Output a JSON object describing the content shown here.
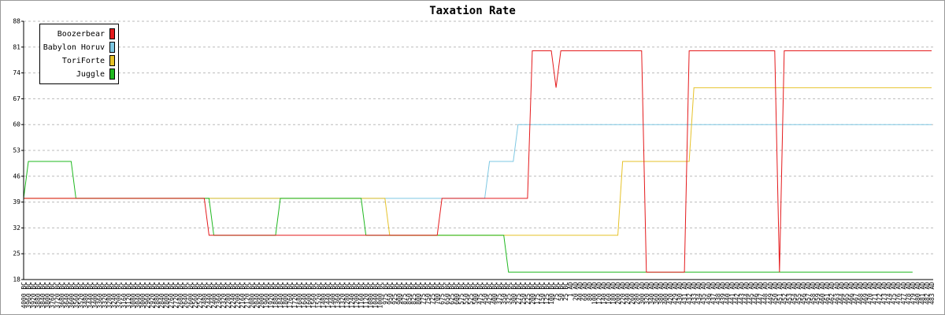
{
  "chart_data": {
    "type": "line",
    "title": "Taxation Rate",
    "categories": [
      "4000 BC",
      "3960 BC",
      "3920 BC",
      "3880 BC",
      "3840 BC",
      "3800 BC",
      "3760 BC",
      "3720 BC",
      "3680 BC",
      "3640 BC",
      "3600 BC",
      "3560 BC",
      "3520 BC",
      "3480 BC",
      "3440 BC",
      "3400 BC",
      "3360 BC",
      "3320 BC",
      "3280 BC",
      "3240 BC",
      "3200 BC",
      "3160 BC",
      "3120 BC",
      "3080 BC",
      "3040 BC",
      "3000 BC",
      "2960 BC",
      "2920 BC",
      "2880 BC",
      "2840 BC",
      "2800 BC",
      "2760 BC",
      "2720 BC",
      "2680 BC",
      "2640 BC",
      "2600 BC",
      "2560 BC",
      "2520 BC",
      "2480 BC",
      "2440 BC",
      "2400 BC",
      "2360 BC",
      "2320 BC",
      "2280 BC",
      "2240 BC",
      "2200 BC",
      "2160 BC",
      "2120 BC",
      "2080 BC",
      "2040 BC",
      "2000 BC",
      "1960 BC",
      "1920 BC",
      "1880 BC",
      "1840 BC",
      "1800 BC",
      "1760 BC",
      "1720 BC",
      "1680 BC",
      "1640 BC",
      "1600 BC",
      "1560 BC",
      "1520 BC",
      "1480 BC",
      "1440 BC",
      "1400 BC",
      "1360 BC",
      "1320 BC",
      "1280 BC",
      "1240 BC",
      "1200 BC",
      "1160 BC",
      "1120 BC",
      "1080 BC",
      "1040 BC",
      "1000 BC",
      "975 BC",
      "950 BC",
      "925 BC",
      "900 BC",
      "875 BC",
      "850 BC",
      "825 BC",
      "800 BC",
      "775 BC",
      "750 BC",
      "725 BC",
      "700 BC",
      "675 BC",
      "650 BC",
      "625 BC",
      "600 BC",
      "575 BC",
      "550 BC",
      "525 BC",
      "500 BC",
      "475 BC",
      "450 BC",
      "425 BC",
      "400 BC",
      "375 BC",
      "350 BC",
      "325 BC",
      "300 BC",
      "275 BC",
      "250 BC",
      "225 BC",
      "200 BC",
      "175 BC",
      "150 BC",
      "125 BC",
      "100 BC",
      "75 BC",
      "50 BC",
      "25 BC",
      "1 AD",
      "20 AD",
      "40 AD",
      "60 AD",
      "80 AD",
      "100 AD",
      "120 AD",
      "140 AD",
      "160 AD",
      "180 AD",
      "200 AD",
      "220 AD",
      "240 AD",
      "260 AD",
      "280 AD",
      "300 AD",
      "320 AD",
      "340 AD",
      "360 AD",
      "380 AD",
      "400 AD",
      "420 AD",
      "429 AD",
      "430 AD",
      "431 AD",
      "432 AD",
      "433 AD",
      "434 AD",
      "435 AD",
      "436 AD",
      "437 AD",
      "438 AD",
      "439 AD",
      "440 AD",
      "441 AD",
      "442 AD",
      "443 AD",
      "444 AD",
      "445 AD",
      "446 AD",
      "447 AD",
      "448 AD",
      "449 AD",
      "450 AD",
      "451 AD",
      "452 AD",
      "453 AD",
      "454 AD",
      "455 AD",
      "456 AD",
      "457 AD",
      "458 AD",
      "459 AD",
      "460 AD",
      "461 AD",
      "462 AD",
      "463 AD",
      "464 AD",
      "465 AD",
      "466 AD",
      "467 AD",
      "468 AD",
      "469 AD",
      "470 AD",
      "471 AD",
      "472 AD",
      "473 AD",
      "474 AD",
      "475 AD",
      "476 AD",
      "477 AD",
      "478 AD",
      "479 AD",
      "480 AD",
      "481 AD",
      "482 AD",
      "483 AD"
    ],
    "series": [
      {
        "name": "Boozerbear",
        "color": "#e41a1c",
        "values": [
          40,
          40,
          40,
          40,
          40,
          40,
          40,
          40,
          40,
          40,
          40,
          40,
          40,
          40,
          40,
          40,
          40,
          40,
          40,
          40,
          40,
          40,
          40,
          40,
          40,
          40,
          40,
          40,
          40,
          40,
          40,
          40,
          40,
          40,
          40,
          40,
          40,
          40,
          40,
          30,
          30,
          30,
          30,
          30,
          30,
          30,
          30,
          30,
          30,
          30,
          30,
          30,
          30,
          30,
          30,
          30,
          30,
          30,
          30,
          30,
          30,
          30,
          30,
          30,
          30,
          30,
          30,
          30,
          30,
          30,
          30,
          30,
          30,
          30,
          30,
          30,
          30,
          30,
          30,
          30,
          30,
          30,
          30,
          30,
          30,
          30,
          30,
          30,
          40,
          40,
          40,
          40,
          40,
          40,
          40,
          40,
          40,
          40,
          40,
          40,
          40,
          40,
          40,
          40,
          40,
          40,
          40,
          80,
          80,
          80,
          80,
          80,
          70,
          80,
          80,
          80,
          80,
          80,
          80,
          80,
          80,
          80,
          80,
          80,
          80,
          80,
          80,
          80,
          80,
          80,
          80,
          20,
          20,
          20,
          20,
          20,
          20,
          20,
          20,
          20,
          80,
          80,
          80,
          80,
          80,
          80,
          80,
          80,
          80,
          80,
          80,
          80,
          80,
          80,
          80,
          80,
          80,
          80,
          80,
          20,
          80,
          80,
          80,
          80,
          80,
          80,
          80,
          80,
          80,
          80,
          80,
          80,
          80,
          80,
          80,
          80,
          80,
          80,
          80,
          80,
          80,
          80,
          80,
          80,
          80,
          80,
          80,
          80,
          80,
          80,
          80,
          80
        ]
      },
      {
        "name": "Babylon Horuv",
        "color": "#7ec8e3",
        "values": [
          40,
          40,
          40,
          40,
          40,
          40,
          40,
          40,
          40,
          40,
          40,
          40,
          40,
          40,
          40,
          40,
          40,
          40,
          40,
          40,
          40,
          40,
          40,
          40,
          40,
          40,
          40,
          40,
          40,
          40,
          40,
          40,
          40,
          40,
          40,
          40,
          40,
          40,
          40,
          40,
          40,
          40,
          40,
          40,
          40,
          40,
          40,
          40,
          40,
          40,
          40,
          40,
          40,
          40,
          40,
          40,
          40,
          40,
          40,
          40,
          40,
          40,
          40,
          40,
          40,
          40,
          40,
          40,
          40,
          40,
          40,
          40,
          40,
          40,
          40,
          40,
          40,
          40,
          40,
          40,
          40,
          40,
          40,
          40,
          40,
          40,
          40,
          40,
          40,
          40,
          40,
          40,
          40,
          40,
          40,
          40,
          40,
          40,
          50,
          50,
          50,
          50,
          50,
          50,
          60,
          60,
          60,
          60,
          60,
          60,
          60,
          60,
          60,
          60,
          60,
          60,
          60,
          60,
          60,
          60,
          60,
          60,
          60,
          60,
          60,
          60,
          60,
          60,
          60,
          60,
          60,
          60,
          60,
          60,
          60,
          60,
          60,
          60,
          60,
          60,
          60,
          60,
          60,
          60,
          60,
          60,
          60,
          60,
          60,
          60,
          60,
          60,
          60,
          60,
          60,
          60,
          60,
          60,
          60,
          60,
          60,
          60,
          60,
          60,
          60,
          60,
          60,
          60,
          60,
          60,
          60,
          60,
          60,
          60,
          60,
          60,
          60,
          60,
          60,
          60,
          60,
          60,
          60,
          60,
          60,
          60,
          60,
          60,
          60,
          60,
          60,
          60
        ]
      },
      {
        "name": "ToriForte",
        "color": "#e6c229",
        "values": [
          40,
          40,
          40,
          40,
          40,
          40,
          40,
          40,
          40,
          40,
          40,
          40,
          40,
          40,
          40,
          40,
          40,
          40,
          40,
          40,
          40,
          40,
          40,
          40,
          40,
          40,
          40,
          40,
          40,
          40,
          40,
          40,
          40,
          40,
          40,
          40,
          40,
          40,
          40,
          40,
          40,
          40,
          40,
          40,
          40,
          40,
          40,
          40,
          40,
          40,
          40,
          40,
          40,
          40,
          40,
          40,
          40,
          40,
          40,
          40,
          40,
          40,
          40,
          40,
          40,
          40,
          40,
          40,
          40,
          40,
          40,
          40,
          40,
          40,
          40,
          40,
          40,
          30,
          30,
          30,
          30,
          30,
          30,
          30,
          30,
          30,
          30,
          30,
          30,
          30,
          30,
          30,
          30,
          30,
          30,
          30,
          30,
          30,
          30,
          30,
          30,
          30,
          30,
          30,
          30,
          30,
          30,
          30,
          30,
          30,
          30,
          30,
          30,
          30,
          30,
          30,
          30,
          30,
          30,
          30,
          30,
          30,
          30,
          30,
          30,
          30,
          50,
          50,
          50,
          50,
          50,
          50,
          50,
          50,
          50,
          50,
          50,
          50,
          50,
          50,
          50,
          70,
          70,
          70,
          70,
          70,
          70,
          70,
          70,
          70,
          70,
          70,
          70,
          70,
          70,
          70,
          70,
          70,
          70,
          70,
          70,
          70,
          70,
          70,
          70,
          70,
          70,
          70,
          70,
          70,
          70,
          70,
          70,
          70,
          70,
          70,
          70,
          70,
          70,
          70,
          70,
          70,
          70,
          70,
          70,
          70,
          70,
          70,
          70,
          70,
          70,
          70
        ]
      },
      {
        "name": "Juggle",
        "color": "#1fb81f",
        "values": [
          40,
          50,
          50,
          50,
          50,
          50,
          50,
          50,
          50,
          50,
          50,
          40,
          40,
          40,
          40,
          40,
          40,
          40,
          40,
          40,
          40,
          40,
          40,
          40,
          40,
          40,
          40,
          40,
          40,
          40,
          40,
          40,
          40,
          40,
          40,
          40,
          40,
          40,
          40,
          40,
          30,
          30,
          30,
          30,
          30,
          30,
          30,
          30,
          30,
          30,
          30,
          30,
          30,
          30,
          40,
          40,
          40,
          40,
          40,
          40,
          40,
          40,
          40,
          40,
          40,
          40,
          40,
          40,
          40,
          40,
          40,
          40,
          30,
          30,
          30,
          30,
          30,
          30,
          30,
          30,
          30,
          30,
          30,
          30,
          30,
          30,
          30,
          30,
          30,
          30,
          30,
          30,
          30,
          30,
          30,
          30,
          30,
          30,
          30,
          30,
          30,
          30,
          20,
          20,
          20,
          20,
          20,
          20,
          20,
          20,
          20,
          20,
          20,
          20,
          20,
          20,
          20,
          20,
          20,
          20,
          20,
          20,
          20,
          20,
          20,
          20,
          20,
          20,
          20,
          20,
          20,
          20,
          20,
          20,
          20,
          20,
          20,
          20,
          20,
          20,
          20,
          20,
          20,
          20,
          20,
          20,
          20,
          20,
          20,
          20,
          20,
          20,
          20,
          20,
          20,
          20,
          20,
          20,
          20,
          20,
          20,
          20,
          20,
          20,
          20,
          20,
          20,
          20,
          20,
          20,
          20,
          20,
          20,
          20,
          20,
          20,
          20,
          20,
          20,
          20,
          20,
          20,
          20,
          20,
          20,
          20,
          20,
          20,
          null,
          null,
          null,
          null
        ]
      }
    ],
    "ylim": [
      18,
      88
    ],
    "yticks": [
      18,
      25,
      32,
      39,
      46,
      53,
      60,
      67,
      74,
      81,
      88
    ],
    "grid": true,
    "legend": "upper left"
  }
}
